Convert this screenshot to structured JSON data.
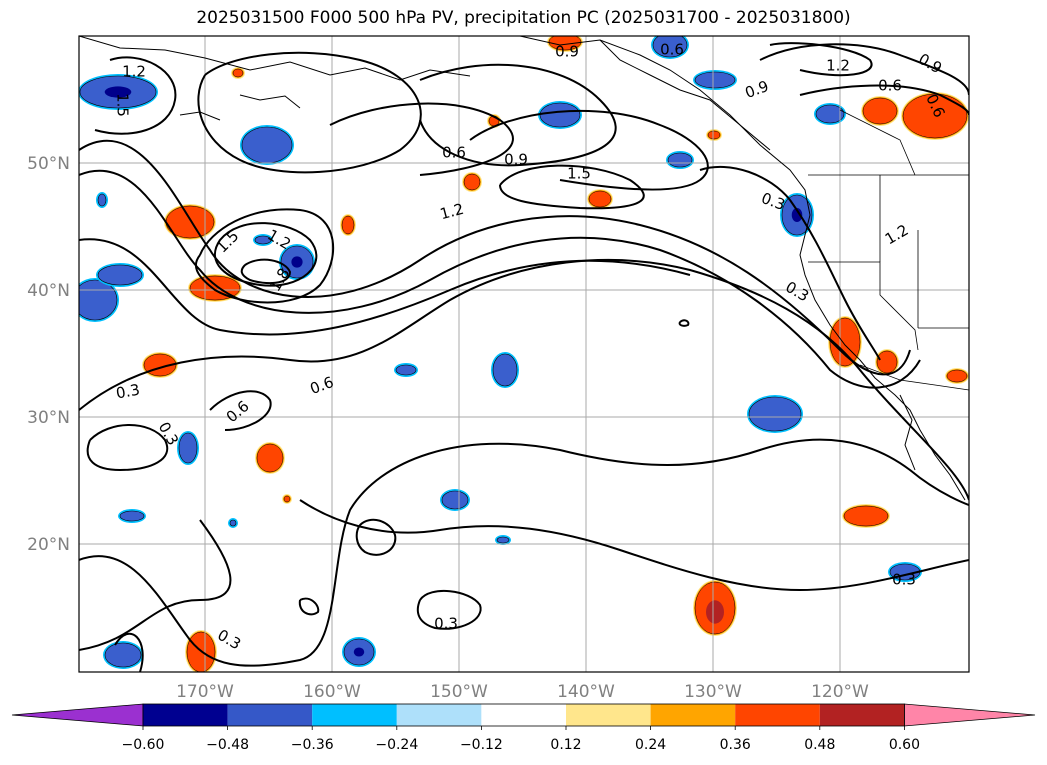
{
  "title": "2025031500 F000 500 hPa PV, precipitation PC (2025031700 - 2025031800)",
  "lat_ticks": [
    "50°N",
    "40°N",
    "30°N",
    "20°N"
  ],
  "lon_ticks": [
    "170°W",
    "160°W",
    "150°W",
    "140°W",
    "130°W",
    "120°W"
  ],
  "contour_labels": [
    "1.2",
    "1.5",
    "0.9",
    "0.6",
    "1.2",
    "0.9",
    "0.6",
    "0.9",
    "0.6",
    "0.9",
    "1.5",
    "1.2",
    "1.5",
    "1.2",
    "1.8",
    "0.6",
    "0.3",
    "1.2",
    "0.3",
    "0.3",
    "0.6",
    "0.6",
    "0.3",
    "0.3",
    "0.3",
    "0.3"
  ],
  "colorbar": {
    "ticks": [
      "−0.60",
      "−0.48",
      "−0.36",
      "−0.24",
      "−0.12",
      "0.12",
      "0.24",
      "0.36",
      "0.48",
      "0.60"
    ],
    "colors": [
      "#9b30d0",
      "#000090",
      "#3558c8",
      "#00bfff",
      "#aee0fa",
      "#ffffff",
      "#ffe68c",
      "#ffa500",
      "#ff4500",
      "#b22222",
      "#ff85a8"
    ]
  },
  "colors": {
    "neg_dark": "#00008b",
    "neg_mid": "#3a5fcd",
    "neg_light": "#00bfff",
    "pos_light": "#ffe68c",
    "pos_mid": "#ffa500",
    "pos_strong": "#ff4500",
    "pos_dark": "#b22222"
  }
}
